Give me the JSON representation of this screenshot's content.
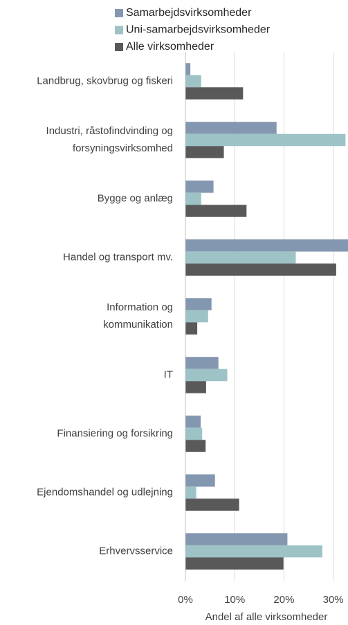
{
  "chart_data": {
    "type": "barh",
    "categories": [
      "Landbrug, skovbrug og fiskeri",
      [
        "Industri, råstofindvinding og",
        "forsyningsvirksomhed"
      ],
      "Bygge og anlæg",
      "Handel og transport mv.",
      [
        "Information og",
        "kommunikation"
      ],
      "IT",
      "Finansiering og forsikring",
      "Ejendomshandel og udlejning",
      "Erhvervsservice"
    ],
    "series": [
      {
        "name": "Samarbejdsvirksomheder",
        "color": "#8497b0",
        "values": [
          1.0,
          18.5,
          5.7,
          33.5,
          5.3,
          6.7,
          3.1,
          6.0,
          20.7
        ]
      },
      {
        "name": "Uni-samarbejdsvirksomheder",
        "color": "#9dc3c6",
        "values": [
          3.2,
          32.5,
          3.2,
          22.4,
          4.6,
          8.5,
          3.4,
          2.2,
          27.8
        ]
      },
      {
        "name": "Alle virksomheder",
        "color": "#595959",
        "values": [
          11.7,
          7.8,
          12.4,
          30.6,
          2.4,
          4.2,
          4.1,
          10.9,
          19.9
        ]
      }
    ],
    "xlabel": "Andel af alle virksomheder",
    "xlim": [
      0,
      33
    ],
    "xticks": [
      {
        "value": 0,
        "label": "0%"
      },
      {
        "value": 10,
        "label": "10%"
      },
      {
        "value": 20,
        "label": "20%"
      },
      {
        "value": 30,
        "label": "30%"
      }
    ],
    "grid": true
  }
}
